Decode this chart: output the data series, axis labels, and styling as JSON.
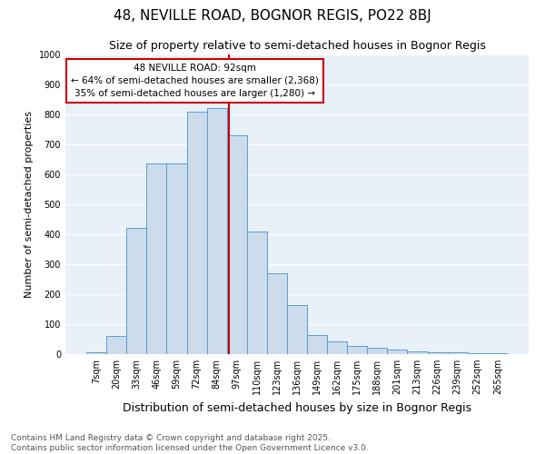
{
  "title": "48, NEVILLE ROAD, BOGNOR REGIS, PO22 8BJ",
  "subtitle": "Size of property relative to semi-detached houses in Bognor Regis",
  "xlabel": "Distribution of semi-detached houses by size in Bognor Regis",
  "ylabel": "Number of semi-detached properties",
  "categories": [
    "7sqm",
    "20sqm",
    "33sqm",
    "46sqm",
    "59sqm",
    "72sqm",
    "84sqm",
    "97sqm",
    "110sqm",
    "123sqm",
    "136sqm",
    "149sqm",
    "162sqm",
    "175sqm",
    "188sqm",
    "201sqm",
    "213sqm",
    "226sqm",
    "239sqm",
    "252sqm",
    "265sqm"
  ],
  "values": [
    5,
    60,
    420,
    635,
    635,
    810,
    820,
    730,
    410,
    270,
    165,
    65,
    42,
    27,
    20,
    15,
    10,
    6,
    5,
    2,
    2
  ],
  "bar_color": "#ccdcec",
  "bar_edge_color": "#5b9bd5",
  "background_color": "#e8f0f8",
  "grid_color": "#ffffff",
  "annotation_line1": "48 NEVILLE ROAD: 92sqm",
  "annotation_line2": "← 64% of semi-detached houses are smaller (2,368)",
  "annotation_line3": "35% of semi-detached houses are larger (1,280) →",
  "annotation_box_color": "#ffffff",
  "annotation_box_edge_color": "#cc0000",
  "ylim": [
    0,
    1000
  ],
  "yticks": [
    0,
    100,
    200,
    300,
    400,
    500,
    600,
    700,
    800,
    900,
    1000
  ],
  "footer_line1": "Contains HM Land Registry data © Crown copyright and database right 2025.",
  "footer_line2": "Contains public sector information licensed under the Open Government Licence v3.0.",
  "title_fontsize": 11,
  "subtitle_fontsize": 9,
  "xlabel_fontsize": 9,
  "ylabel_fontsize": 8,
  "tick_fontsize": 7,
  "annotation_fontsize": 7.5,
  "footer_fontsize": 6.5,
  "property_size": 92,
  "bin_width": 13
}
